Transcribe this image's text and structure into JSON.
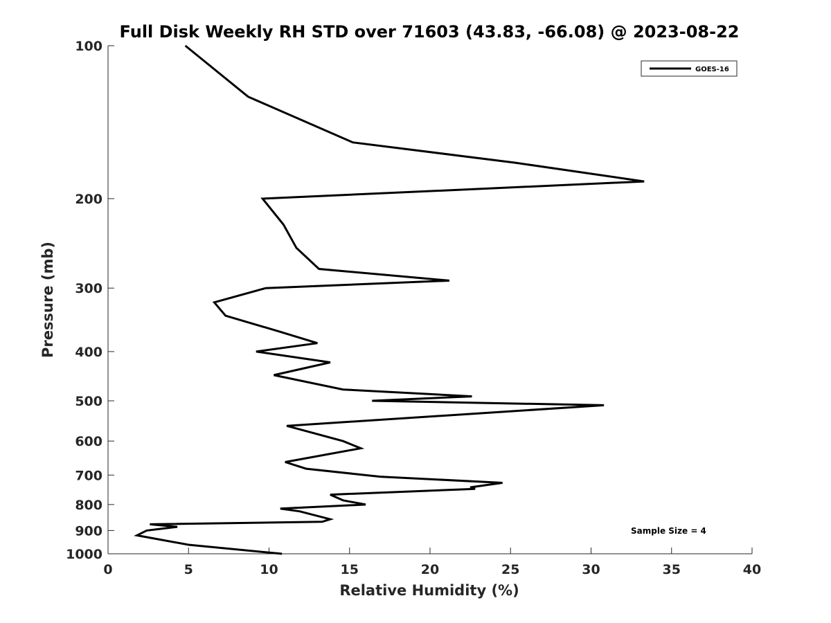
{
  "chart_data": {
    "type": "line",
    "title": "Full Disk Weekly RH STD over 71603 (43.83, -66.08) @ 2023-08-22",
    "xlabel": "Relative Humidity (%)",
    "ylabel": "Pressure (mb)",
    "xlim": [
      0,
      40
    ],
    "ylim": [
      100,
      1000
    ],
    "y_scale": "log",
    "y_reversed": true,
    "x_ticks": [
      0,
      5,
      10,
      15,
      20,
      25,
      30,
      35,
      40
    ],
    "y_ticks": [
      100,
      200,
      300,
      400,
      500,
      600,
      700,
      800,
      900,
      1000
    ],
    "grid": false,
    "legend_position": "top-right",
    "series": [
      {
        "name": "GOES-16",
        "color": "#000000",
        "rh": [
          4.8,
          8.7,
          15.2,
          25.3,
          33.3,
          9.6,
          10.9,
          11.7,
          13.1,
          21.2,
          9.8,
          6.6,
          7.3,
          10.6,
          13.0,
          9.2,
          13.8,
          10.3,
          14.6,
          22.6,
          16.4,
          30.8,
          11.1,
          14.6,
          15.7,
          11.0,
          12.3,
          16.9,
          24.5,
          22.5,
          22.8,
          13.8,
          14.6,
          16.0,
          10.7,
          11.9,
          13.8,
          13.3,
          2.6,
          4.3,
          2.4,
          1.8,
          5.0,
          10.8
        ],
        "pressure": [
          100,
          126,
          155,
          170,
          185,
          200,
          225,
          250,
          275,
          290,
          300,
          320,
          340,
          365,
          385,
          400,
          420,
          445,
          475,
          490,
          500,
          510,
          560,
          600,
          620,
          660,
          680,
          705,
          725,
          740,
          745,
          765,
          785,
          800,
          815,
          825,
          855,
          865,
          875,
          885,
          900,
          920,
          960,
          1000
        ]
      }
    ],
    "annotations": [
      "Sample Size = 4"
    ]
  }
}
